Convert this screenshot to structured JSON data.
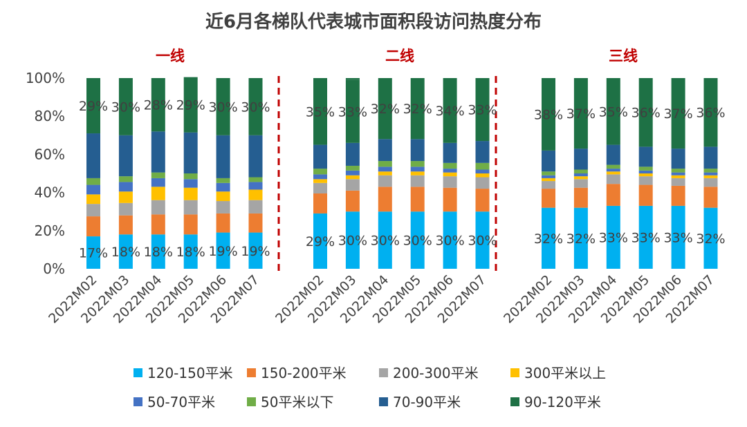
{
  "chart_data": {
    "type": "stacked-bar",
    "title": "近6月各梯队代表城市面积段访问热度分布",
    "ylim": [
      0,
      100
    ],
    "y_ticks": [
      "0%",
      "20%",
      "40%",
      "60%",
      "80%",
      "100%"
    ],
    "categories": [
      "2022M02",
      "2022M03",
      "2022M04",
      "2022M05",
      "2022M06",
      "2022M07"
    ],
    "series_colors": {
      "120-150平米": "#00b0f0",
      "150-200平米": "#ed7d31",
      "200-300平米": "#a5a5a5",
      "300平米以上": "#ffc000",
      "50-70平米": "#4472c4",
      "50平米以下": "#70ad47",
      "70-90平米": "#255e91",
      "90-120平米": "#1e7145"
    },
    "stack_order": [
      "120-150平米",
      "150-200平米",
      "200-300平米",
      "300平米以上",
      "50-70平米",
      "50平米以下",
      "70-90平米",
      "90-120平米"
    ],
    "legend_rows": [
      [
        "120-150平米",
        "150-200平米",
        "200-300平米",
        "300平米以上"
      ],
      [
        "50-70平米",
        "50平米以下",
        "70-90平米",
        "90-120平米"
      ]
    ],
    "groups": [
      {
        "name": "一线",
        "series": [
          {
            "name": "120-150平米",
            "values": [
              17,
              18,
              18,
              18,
              19,
              19
            ],
            "labels": [
              "17%",
              "18%",
              "18%",
              "18%",
              "19%",
              "19%"
            ]
          },
          {
            "name": "150-200平米",
            "values": [
              10.5,
              10,
              10.5,
              10.5,
              10,
              10
            ]
          },
          {
            "name": "200-300平米",
            "values": [
              6.5,
              6.5,
              7.5,
              7.5,
              6.5,
              7
            ]
          },
          {
            "name": "300平米以上",
            "values": [
              5,
              6,
              7,
              6.5,
              5,
              5.5
            ]
          },
          {
            "name": "50-70平米",
            "values": [
              5,
              5,
              4.5,
              4.5,
              4.5,
              4
            ]
          },
          {
            "name": "50平米以下",
            "values": [
              3.5,
              3,
              3,
              3,
              2.5,
              2.5
            ]
          },
          {
            "name": "70-90平米",
            "values": [
              23.5,
              21.5,
              21.5,
              21.5,
              22.5,
              22
            ]
          },
          {
            "name": "90-120平米",
            "values": [
              29,
              30,
              28,
              29,
              30,
              30
            ],
            "labels": [
              "29%",
              "30%",
              "28%",
              "29%",
              "30%",
              "30%"
            ]
          }
        ]
      },
      {
        "name": "二线",
        "series": [
          {
            "name": "120-150平米",
            "values": [
              29,
              30,
              30,
              30,
              30,
              30
            ],
            "labels": [
              "29%",
              "30%",
              "30%",
              "30%",
              "30%",
              "30%"
            ]
          },
          {
            "name": "150-200平米",
            "values": [
              10.5,
              11,
              13,
              13,
              12.5,
              12
            ]
          },
          {
            "name": "200-300平米",
            "values": [
              5.5,
              6,
              6,
              6,
              6,
              6
            ]
          },
          {
            "name": "300平米以上",
            "values": [
              2,
              2,
              2,
              2,
              2,
              2
            ]
          },
          {
            "name": "50-70平米",
            "values": [
              2.5,
              2.5,
              2.5,
              2.5,
              2,
              2
            ]
          },
          {
            "name": "50平米以下",
            "values": [
              3,
              2.5,
              3,
              3,
              3,
              3.5
            ]
          },
          {
            "name": "70-90平米",
            "values": [
              12.5,
              12,
              11.5,
              11.5,
              10.5,
              11.5
            ]
          },
          {
            "name": "90-120平米",
            "values": [
              35,
              33,
              32,
              32,
              34,
              33
            ],
            "labels": [
              "35%",
              "33%",
              "32%",
              "32%",
              "34%",
              "33%"
            ]
          }
        ]
      },
      {
        "name": "三线",
        "series": [
          {
            "name": "120-150平米",
            "values": [
              32,
              32,
              33,
              33,
              33,
              32
            ],
            "labels": [
              "32%",
              "32%",
              "33%",
              "33%",
              "33%",
              "32%"
            ]
          },
          {
            "name": "150-200平米",
            "values": [
              10,
              10.5,
              11.5,
              11,
              10.5,
              11
            ]
          },
          {
            "name": "200-300平米",
            "values": [
              4,
              4.5,
              5,
              4.5,
              4,
              4.5
            ]
          },
          {
            "name": "300平米以上",
            "values": [
              1.5,
              1.5,
              1.5,
              1.5,
              1.5,
              1.5
            ]
          },
          {
            "name": "50-70平米",
            "values": [
              1.5,
              1.5,
              1.5,
              1.5,
              1.5,
              1.5
            ]
          },
          {
            "name": "50平米以下",
            "values": [
              2,
              2,
              2,
              2,
              2,
              2
            ]
          },
          {
            "name": "70-90平米",
            "values": [
              11,
              11,
              10.5,
              10.5,
              10.5,
              11.5
            ]
          },
          {
            "name": "90-120平米",
            "values": [
              38,
              37,
              35,
              36,
              37,
              36
            ],
            "labels": [
              "38%",
              "37%",
              "35%",
              "36%",
              "37%",
              "36%"
            ]
          }
        ]
      }
    ],
    "divider_color": "#c00000"
  }
}
